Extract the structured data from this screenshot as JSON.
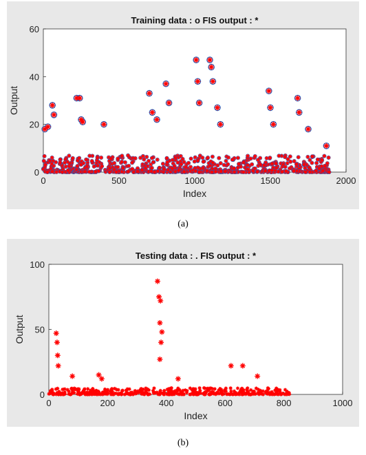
{
  "captions": {
    "a": "(a)",
    "b": "(b)"
  },
  "marker_colors": {
    "training": "#1f5fbf",
    "testing": "#1f5fbf",
    "fis": "#ff0000"
  },
  "chart_data": [
    {
      "type": "scatter",
      "title": "Training data : o   FIS output : *",
      "xlabel": "Index",
      "ylabel": "Output",
      "xlim": [
        0,
        2000
      ],
      "ylim": [
        0,
        60
      ],
      "xticks": [
        0,
        500,
        1000,
        1500,
        2000
      ],
      "yticks": [
        0,
        20,
        40,
        60
      ],
      "grid": false,
      "series": [
        {
          "marker": "o",
          "values": [
            [
              10,
              18
            ],
            [
              30,
              19
            ],
            [
              60,
              28
            ],
            [
              70,
              24
            ],
            [
              220,
              31
            ],
            [
              240,
              31
            ],
            [
              250,
              22
            ],
            [
              260,
              21
            ],
            [
              400,
              20
            ],
            [
              700,
              33
            ],
            [
              720,
              25
            ],
            [
              750,
              22
            ],
            [
              810,
              37
            ],
            [
              830,
              29
            ],
            [
              1010,
              47
            ],
            [
              1020,
              38
            ],
            [
              1030,
              29
            ],
            [
              1100,
              47
            ],
            [
              1110,
              44
            ],
            [
              1120,
              38
            ],
            [
              1150,
              27
            ],
            [
              1170,
              20
            ],
            [
              1490,
              34
            ],
            [
              1500,
              27
            ],
            [
              1520,
              20
            ],
            [
              1680,
              31
            ],
            [
              1690,
              25
            ],
            [
              1750,
              18
            ],
            [
              1870,
              11
            ]
          ]
        },
        {
          "marker": "*",
          "values": [
            [
              10,
              18
            ],
            [
              30,
              19
            ],
            [
              60,
              28
            ],
            [
              70,
              24
            ],
            [
              220,
              31
            ],
            [
              240,
              31
            ],
            [
              250,
              22
            ],
            [
              260,
              21
            ],
            [
              400,
              20
            ],
            [
              700,
              33
            ],
            [
              720,
              25
            ],
            [
              750,
              22
            ],
            [
              810,
              37
            ],
            [
              830,
              29
            ],
            [
              1010,
              47
            ],
            [
              1020,
              38
            ],
            [
              1030,
              29
            ],
            [
              1100,
              47
            ],
            [
              1110,
              44
            ],
            [
              1120,
              38
            ],
            [
              1150,
              27
            ],
            [
              1170,
              20
            ],
            [
              1490,
              34
            ],
            [
              1500,
              27
            ],
            [
              1520,
              20
            ],
            [
              1680,
              31
            ],
            [
              1690,
              25
            ],
            [
              1750,
              18
            ],
            [
              1870,
              11
            ]
          ]
        }
      ]
    },
    {
      "type": "scatter",
      "title": "Testing data : .   FIS output : *",
      "xlabel": "Index",
      "ylabel": "Output",
      "xlim": [
        0,
        1000
      ],
      "ylim": [
        0,
        100
      ],
      "xticks": [
        0,
        200,
        400,
        600,
        800,
        1000
      ],
      "yticks": [
        0,
        50,
        100
      ],
      "grid": false,
      "series": [
        {
          "marker": ".",
          "values": [
            [
              25,
              47
            ],
            [
              28,
              40
            ],
            [
              30,
              30
            ],
            [
              32,
              22
            ],
            [
              80,
              14
            ],
            [
              170,
              15
            ],
            [
              180,
              12
            ],
            [
              370,
              87
            ],
            [
              375,
              75
            ],
            [
              380,
              72
            ],
            [
              378,
              55
            ],
            [
              385,
              48
            ],
            [
              382,
              40
            ],
            [
              378,
              27
            ],
            [
              440,
              12
            ],
            [
              620,
              22
            ],
            [
              660,
              22
            ],
            [
              710,
              14
            ]
          ]
        },
        {
          "marker": "*",
          "values": [
            [
              25,
              47
            ],
            [
              28,
              40
            ],
            [
              30,
              30
            ],
            [
              32,
              22
            ],
            [
              80,
              14
            ],
            [
              170,
              15
            ],
            [
              180,
              12
            ],
            [
              370,
              87
            ],
            [
              375,
              75
            ],
            [
              380,
              72
            ],
            [
              378,
              55
            ],
            [
              385,
              48
            ],
            [
              382,
              40
            ],
            [
              378,
              27
            ],
            [
              440,
              12
            ],
            [
              620,
              22
            ],
            [
              660,
              22
            ],
            [
              710,
              14
            ]
          ]
        }
      ]
    }
  ]
}
